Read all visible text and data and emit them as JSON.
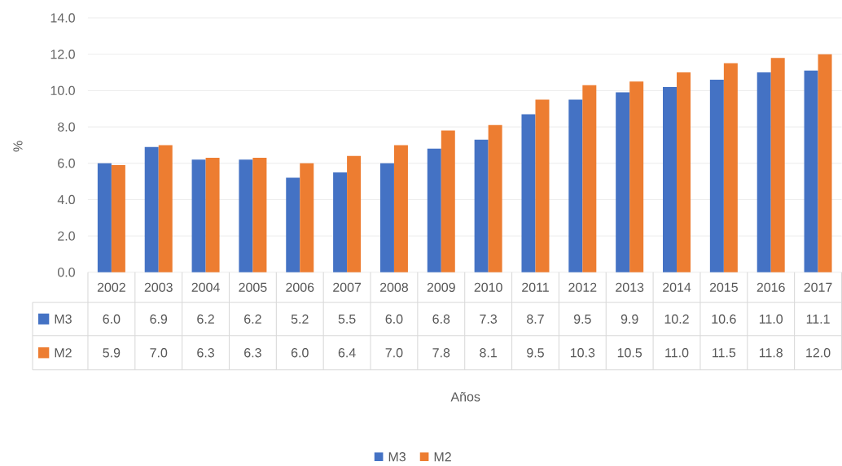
{
  "chart_data": {
    "type": "bar",
    "ylabel": "%",
    "categories": [
      "2002",
      "2003",
      "2004",
      "2005",
      "2006",
      "2007",
      "2008",
      "2009",
      "2010",
      "2011",
      "2012",
      "2013",
      "2014",
      "2015",
      "2016",
      "2017"
    ],
    "series": [
      {
        "name": "M3",
        "color": "#4472c4",
        "values": [
          6.0,
          6.9,
          6.2,
          6.2,
          5.2,
          5.5,
          6.0,
          6.8,
          7.3,
          8.7,
          9.5,
          9.9,
          10.2,
          10.6,
          11.0,
          11.1
        ],
        "value_labels": [
          "6.0",
          "6.9",
          "6.2",
          "6.2",
          "5.2",
          "5.5",
          "6.0",
          "6.8",
          "7.3",
          "8.7",
          "9.5",
          "9.9",
          "10.2",
          "10.6",
          "11.0",
          "11.1"
        ]
      },
      {
        "name": "M2",
        "color": "#ed7d31",
        "values": [
          5.9,
          7.0,
          6.3,
          6.3,
          6.0,
          6.4,
          7.0,
          7.8,
          8.1,
          9.5,
          10.3,
          10.5,
          11.0,
          11.5,
          11.8,
          12.0
        ],
        "value_labels": [
          "5.9",
          "7.0",
          "6.3",
          "6.3",
          "6.0",
          "6.4",
          "7.0",
          "7.8",
          "8.1",
          "9.5",
          "10.3",
          "10.5",
          "11.0",
          "11.5",
          "11.8",
          "12.0"
        ]
      }
    ],
    "annotations": [
      "Años"
    ],
    "ylim": [
      0,
      14
    ],
    "yticks": [
      {
        "value": 0,
        "label": "0.0"
      },
      {
        "value": 2,
        "label": "2.0"
      },
      {
        "value": 4,
        "label": "4.0"
      },
      {
        "value": 6,
        "label": "6.0"
      },
      {
        "value": 8,
        "label": "8.0"
      },
      {
        "value": 10,
        "label": "10.0"
      },
      {
        "value": 12,
        "label": "12.0"
      },
      {
        "value": 14,
        "label": "14.0"
      }
    ],
    "grid": "y",
    "legend": "bottom"
  }
}
